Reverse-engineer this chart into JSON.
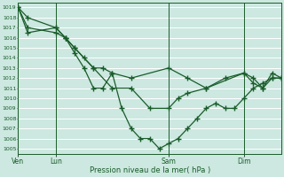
{
  "bg_color": "#cce8e0",
  "grid_color": "#ffffff",
  "line_color": "#1a5c2a",
  "xlabel": "Pression niveau de la mer( hPa )",
  "ylim": [
    1004.5,
    1019.5
  ],
  "yticks": [
    1005,
    1006,
    1007,
    1008,
    1009,
    1010,
    1011,
    1012,
    1013,
    1014,
    1015,
    1016,
    1017,
    1018,
    1019
  ],
  "xtick_labels": [
    "Ven",
    "Lun",
    "Sam",
    "Dim"
  ],
  "xtick_positions": [
    0,
    0.143,
    0.571,
    0.857
  ],
  "xlim": [
    0,
    1.0
  ],
  "series1_x": [
    0.0,
    0.036,
    0.143,
    0.179,
    0.214,
    0.286,
    0.321,
    0.357,
    0.429,
    0.571,
    0.643,
    0.714,
    0.857,
    0.893,
    0.929,
    0.964,
    1.0
  ],
  "series1_y": [
    1019,
    1018,
    1017,
    1016,
    1015,
    1013,
    1013,
    1012.5,
    1012,
    1013,
    1012,
    1011,
    1012.5,
    1012,
    1011,
    1012.5,
    1012
  ],
  "series2_x": [
    0.0,
    0.036,
    0.143,
    0.179,
    0.214,
    0.25,
    0.286,
    0.357,
    0.429,
    0.5,
    0.571,
    0.607,
    0.643,
    0.714,
    0.786,
    0.857,
    0.893,
    0.929,
    0.964,
    1.0
  ],
  "series2_y": [
    1019,
    1017,
    1016.5,
    1016,
    1015,
    1014,
    1013,
    1011,
    1011,
    1009,
    1009,
    1010,
    1010.5,
    1011,
    1012,
    1012.5,
    1011.5,
    1011,
    1012,
    1012
  ],
  "series3_x": [
    0.0,
    0.036,
    0.143,
    0.179,
    0.214,
    0.25,
    0.286,
    0.321,
    0.357,
    0.393,
    0.429,
    0.464,
    0.5,
    0.536,
    0.571,
    0.607,
    0.643,
    0.679,
    0.714,
    0.75,
    0.786,
    0.821,
    0.857,
    0.893,
    0.929,
    0.964,
    1.0
  ],
  "series3_y": [
    1019,
    1016.5,
    1017,
    1016,
    1014.5,
    1013,
    1011,
    1011,
    1012.5,
    1009,
    1007,
    1006,
    1006,
    1005,
    1005.5,
    1006,
    1007,
    1008,
    1009,
    1009.5,
    1009,
    1009,
    1010,
    1011,
    1011.5,
    1012,
    1012
  ]
}
